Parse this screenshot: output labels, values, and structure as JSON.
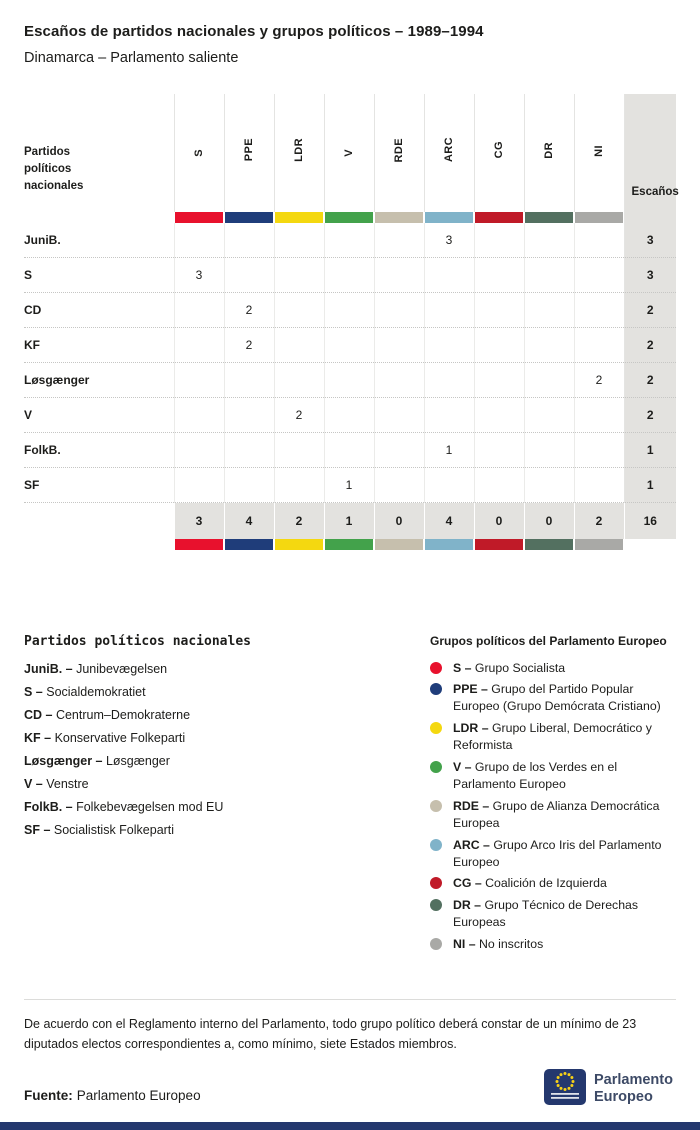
{
  "header": {
    "title": "Escaños de partidos nacionales y grupos políticos – 1989–1994",
    "subtitle": "Dinamarca – Parlamento saliente"
  },
  "chart_data": {
    "type": "table",
    "title": "Escaños de partidos nacionales y grupos políticos – 1989–1994",
    "subtitle": "Dinamarca – Parlamento saliente",
    "row_header": "Partidos políticos nacionales",
    "seats_header": "Escaños",
    "groups": [
      "S",
      "PPE",
      "LDR",
      "V",
      "RDE",
      "ARC",
      "CG",
      "DR",
      "NI"
    ],
    "group_colors": {
      "S": "#e8112d",
      "PPE": "#1f3d7a",
      "LDR": "#f4d810",
      "V": "#43a24b",
      "RDE": "#c6bfad",
      "ARC": "#80b3c9",
      "CG": "#c01a28",
      "DR": "#537060",
      "NI": "#a9a9a6"
    },
    "rows": [
      {
        "party": "JuniB.",
        "group": "ARC",
        "seats": 3
      },
      {
        "party": "S",
        "group": "S",
        "seats": 3
      },
      {
        "party": "CD",
        "group": "PPE",
        "seats": 2
      },
      {
        "party": "KF",
        "group": "PPE",
        "seats": 2
      },
      {
        "party": "Løsgænger",
        "group": "NI",
        "seats": 2
      },
      {
        "party": "V",
        "group": "LDR",
        "seats": 2
      },
      {
        "party": "FolkB.",
        "group": "ARC",
        "seats": 1
      },
      {
        "party": "SF",
        "group": "V",
        "seats": 1
      }
    ],
    "totals": {
      "S": 3,
      "PPE": 4,
      "LDR": 2,
      "V": 1,
      "RDE": 0,
      "ARC": 4,
      "CG": 0,
      "DR": 0,
      "NI": 2,
      "total": 16
    }
  },
  "party_legend": {
    "title": "Partidos políticos nacionales",
    "separator": "–",
    "items": [
      {
        "abbr": "JuniB.",
        "name": "Junibevægelsen"
      },
      {
        "abbr": "S",
        "name": "Socialdemokratiet"
      },
      {
        "abbr": "CD",
        "name": "Centrum–Demokraterne"
      },
      {
        "abbr": "KF",
        "name": "Konservative Folkeparti"
      },
      {
        "abbr": "Løsgænger",
        "name": "Løsgænger"
      },
      {
        "abbr": "V",
        "name": "Venstre"
      },
      {
        "abbr": "FolkB.",
        "name": "Folkebevægelsen mod EU"
      },
      {
        "abbr": "SF",
        "name": "Socialistisk Folkeparti"
      }
    ]
  },
  "group_legend": {
    "title": "Grupos políticos del Parlamento Europeo",
    "separator": "–",
    "items": [
      {
        "abbr": "S",
        "name": "Grupo Socialista"
      },
      {
        "abbr": "PPE",
        "name": "Grupo del Partido Popular Europeo (Grupo Demócrata Cristiano)"
      },
      {
        "abbr": "LDR",
        "name": "Grupo Liberal, Democrático y Reformista"
      },
      {
        "abbr": "V",
        "name": "Grupo de los Verdes en el Parlamento Europeo"
      },
      {
        "abbr": "RDE",
        "name": "Grupo de Alianza Democrática Europea"
      },
      {
        "abbr": "ARC",
        "name": "Grupo Arco Iris del Parlamento Europeo"
      },
      {
        "abbr": "CG",
        "name": "Coalición de Izquierda"
      },
      {
        "abbr": "DR",
        "name": "Grupo Técnico de Derechas Europeas"
      },
      {
        "abbr": "NI",
        "name": "No inscritos"
      }
    ]
  },
  "footer": {
    "note": "De acuerdo con el Reglamento interno del Parlamento, todo grupo político deberá constar de un mínimo de 23 diputados electos correspondientes a, como mínimo, siete Estados miembros.",
    "source_label": "Fuente:",
    "source": "Parlamento Europeo",
    "logo_line1": "Parlamento",
    "logo_line2": "Europeo"
  }
}
